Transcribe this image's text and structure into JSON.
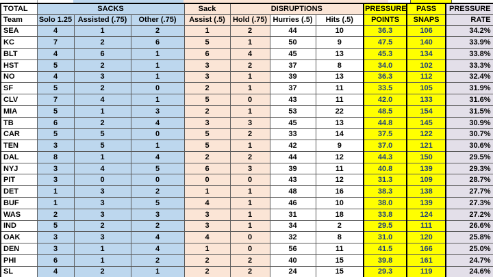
{
  "colors": {
    "sacks_blue": "#BDD7EE",
    "disruptions_tan": "#FBE5D6",
    "pressure_yellow": "#FFFF00",
    "rate_lavender": "#E3DFE9",
    "yellow_cell_text": "#1F4077",
    "text_black": "#000000"
  },
  "header": {
    "row1": {
      "total": "TOTAL",
      "sacks": "SACKS",
      "sack": "Sack",
      "disruptions": "DISRUPTIONS",
      "pressure": "PRESSURE",
      "pass": "PASS",
      "pressure_rate": "PRESSURE"
    },
    "row2": {
      "team": "Team",
      "solo": "Solo 1.25",
      "assisted": "Assisted (.75)",
      "other": "Other (.75)",
      "assist": "Assist (.5)",
      "hold": "Hold (.75)",
      "hurries": "Hurries (.5)",
      "hits": "Hits (.5)",
      "points": "POINTS",
      "snaps": "SNAPS",
      "rate": "RATE"
    }
  },
  "rows": [
    [
      "SEA",
      "4",
      "1",
      "2",
      "1",
      "2",
      "44",
      "10",
      "36.3",
      "106",
      "34.2%"
    ],
    [
      "KC",
      "7",
      "2",
      "6",
      "5",
      "1",
      "50",
      "9",
      "47.5",
      "140",
      "33.9%"
    ],
    [
      "BLT",
      "4",
      "6",
      "1",
      "6",
      "4",
      "45",
      "13",
      "45.3",
      "134",
      "33.8%"
    ],
    [
      "HST",
      "5",
      "2",
      "1",
      "3",
      "2",
      "37",
      "8",
      "34.0",
      "102",
      "33.3%"
    ],
    [
      "NO",
      "4",
      "3",
      "1",
      "3",
      "1",
      "39",
      "13",
      "36.3",
      "112",
      "32.4%"
    ],
    [
      "SF",
      "5",
      "2",
      "0",
      "2",
      "1",
      "37",
      "11",
      "33.5",
      "105",
      "31.9%"
    ],
    [
      "CLV",
      "7",
      "4",
      "1",
      "5",
      "0",
      "43",
      "11",
      "42.0",
      "133",
      "31.6%"
    ],
    [
      "MIA",
      "5",
      "1",
      "3",
      "2",
      "1",
      "53",
      "22",
      "48.5",
      "154",
      "31.5%"
    ],
    [
      "TB",
      "6",
      "2",
      "4",
      "3",
      "3",
      "45",
      "13",
      "44.8",
      "145",
      "30.9%"
    ],
    [
      "CAR",
      "5",
      "5",
      "0",
      "5",
      "2",
      "33",
      "14",
      "37.5",
      "122",
      "30.7%"
    ],
    [
      "TEN",
      "3",
      "5",
      "1",
      "5",
      "1",
      "42",
      "9",
      "37.0",
      "121",
      "30.6%"
    ],
    [
      "DAL",
      "8",
      "1",
      "4",
      "2",
      "2",
      "44",
      "12",
      "44.3",
      "150",
      "29.5%"
    ],
    [
      "NYJ",
      "3",
      "4",
      "5",
      "6",
      "3",
      "39",
      "11",
      "40.8",
      "139",
      "29.3%"
    ],
    [
      "PIT",
      "3",
      "0",
      "0",
      "0",
      "0",
      "43",
      "12",
      "31.3",
      "109",
      "28.7%"
    ],
    [
      "DET",
      "1",
      "3",
      "2",
      "1",
      "1",
      "48",
      "16",
      "38.3",
      "138",
      "27.7%"
    ],
    [
      "BUF",
      "1",
      "3",
      "5",
      "4",
      "1",
      "46",
      "10",
      "38.0",
      "139",
      "27.3%"
    ],
    [
      "WAS",
      "2",
      "3",
      "3",
      "3",
      "1",
      "31",
      "18",
      "33.8",
      "124",
      "27.2%"
    ],
    [
      "IND",
      "5",
      "2",
      "2",
      "3",
      "1",
      "34",
      "2",
      "29.5",
      "111",
      "26.6%"
    ],
    [
      "OAK",
      "3",
      "3",
      "4",
      "4",
      "0",
      "32",
      "8",
      "31.0",
      "120",
      "25.8%"
    ],
    [
      "DEN",
      "3",
      "1",
      "4",
      "1",
      "0",
      "56",
      "11",
      "41.5",
      "166",
      "25.0%"
    ],
    [
      "PHI",
      "6",
      "1",
      "2",
      "2",
      "2",
      "40",
      "15",
      "39.8",
      "161",
      "24.7%"
    ],
    [
      "SL",
      "4",
      "2",
      "1",
      "2",
      "2",
      "24",
      "15",
      "29.3",
      "119",
      "24.6%"
    ]
  ]
}
